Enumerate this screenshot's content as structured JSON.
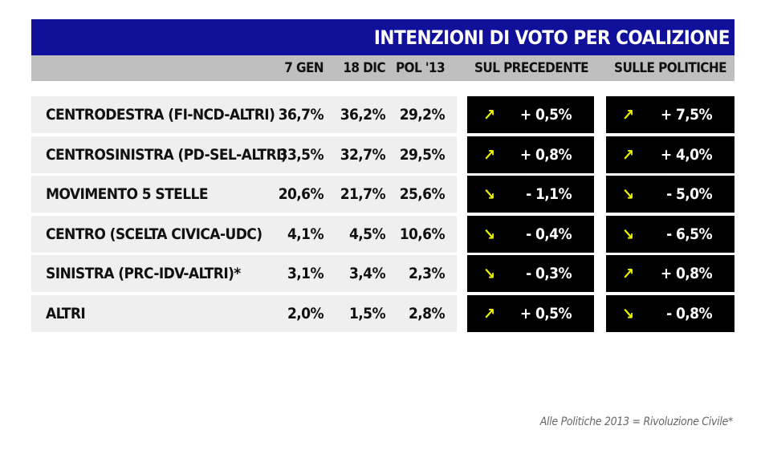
{
  "title": "INTENZIONI DI VOTO PER COALIZIONE",
  "columns": {
    "jan": "7 GEN",
    "dec": "18 DIC",
    "pol": "POL '13",
    "prev": "SUL PRECEDENTE",
    "pol_change": "SULLE POLITICHE"
  },
  "footnote": "Alle Politiche 2013 = Rivoluzione Civile*",
  "colors": {
    "title_bg": "#10109a",
    "header_bg": "#bfbfbf",
    "row_bg": "#efefef",
    "arrow": "#e8f000"
  },
  "chart_data": {
    "type": "table",
    "columns": [
      "7 GEN",
      "18 DIC",
      "POL '13",
      "SUL PRECEDENTE",
      "SULLE POLITICHE"
    ],
    "rows": [
      {
        "name": "CENTRODESTRA (FI-NCD-ALTRI)",
        "jan": "36,7%",
        "dec": "36,2%",
        "pol": "29,2%",
        "prev_dir": "up",
        "prev": "+ 0,5%",
        "pol_dir": "up",
        "pol_change": "+ 7,5%"
      },
      {
        "name": "CENTROSINISTRA (PD-SEL-ALTRI)",
        "jan": "33,5%",
        "dec": "32,7%",
        "pol": "29,5%",
        "prev_dir": "up",
        "prev": "+ 0,8%",
        "pol_dir": "up",
        "pol_change": "+ 4,0%"
      },
      {
        "name": "MOVIMENTO 5 STELLE",
        "jan": "20,6%",
        "dec": "21,7%",
        "pol": "25,6%",
        "prev_dir": "down",
        "prev": "- 1,1%",
        "pol_dir": "down",
        "pol_change": "- 5,0%"
      },
      {
        "name": "CENTRO (SCELTA CIVICA-UDC)",
        "jan": "4,1%",
        "dec": "4,5%",
        "pol": "10,6%",
        "prev_dir": "down",
        "prev": "- 0,4%",
        "pol_dir": "down",
        "pol_change": "- 6,5%"
      },
      {
        "name": "SINISTRA (PRC-IDV-ALTRI)*",
        "jan": "3,1%",
        "dec": "3,4%",
        "pol": "2,3%",
        "prev_dir": "down",
        "prev": "- 0,3%",
        "pol_dir": "up",
        "pol_change": "+ 0,8%"
      },
      {
        "name": "ALTRI",
        "jan": "2,0%",
        "dec": "1,5%",
        "pol": "2,8%",
        "prev_dir": "up",
        "prev": "+ 0,5%",
        "pol_dir": "down",
        "pol_change": "- 0,8%"
      }
    ]
  }
}
